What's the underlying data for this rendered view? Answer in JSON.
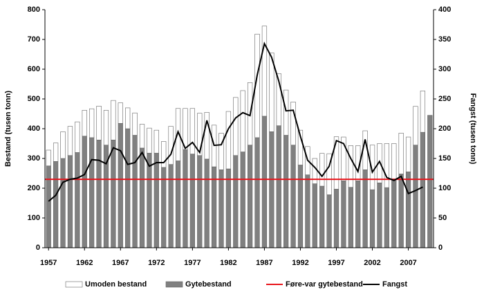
{
  "chart_data": {
    "type": "stacked-bar-line",
    "y_label": "Bestand (tusen tonn)",
    "y2_label": "Fangst (tusen tonn)",
    "categories": [
      "1957",
      null,
      null,
      null,
      null,
      "1962",
      null,
      null,
      null,
      null,
      "1967",
      null,
      null,
      null,
      null,
      "1972",
      null,
      null,
      null,
      null,
      "1977",
      null,
      null,
      null,
      null,
      "1982",
      null,
      null,
      null,
      null,
      "1987",
      null,
      null,
      null,
      null,
      "1992",
      null,
      null,
      null,
      null,
      "1997",
      null,
      null,
      null,
      null,
      "2002",
      null,
      null,
      null,
      null,
      "2007",
      null,
      null,
      null
    ],
    "series": [
      {
        "name": "Umoden bestand",
        "type": "bar",
        "color": "#ffffff",
        "values": [
          53,
          62,
          90,
          98,
          103,
          87,
          97,
          114,
          117,
          133,
          69,
          70,
          75,
          80,
          84,
          77,
          87,
          128,
          176,
          138,
          153,
          142,
          157,
          140,
          123,
          193,
          195,
          206,
          210,
          348,
          303,
          265,
          175,
          152,
          145,
          117,
          95,
          85,
          110,
          138,
          176,
          147,
          140,
          118,
          131,
          150,
          132,
          148,
          122,
          137,
          117,
          130,
          139,
          0
        ]
      },
      {
        "name": "Gytebestand",
        "type": "bar",
        "color": "#808080",
        "values": [
          275,
          290,
          300,
          310,
          320,
          375,
          370,
          362,
          345,
          362,
          418,
          400,
          378,
          335,
          318,
          318,
          270,
          280,
          292,
          330,
          315,
          310,
          298,
          272,
          262,
          265,
          310,
          322,
          345,
          370,
          442,
          390,
          410,
          378,
          345,
          278,
          245,
          215,
          207,
          178,
          197,
          225,
          203,
          225,
          262,
          195,
          218,
          202,
          228,
          248,
          255,
          345,
          388,
          445
        ]
      },
      {
        "name": "Føre-var gytebestand",
        "type": "hline",
        "color": "#e8141b",
        "value": 230
      },
      {
        "name": "Fangst",
        "type": "line",
        "color": "#000000",
        "axis": "y2",
        "values": [
          78,
          88,
          110,
          115,
          117,
          123,
          148,
          147,
          141,
          168,
          163,
          140,
          143,
          160,
          137,
          143,
          143,
          157,
          195,
          167,
          177,
          160,
          214,
          172,
          173,
          200,
          218,
          227,
          222,
          290,
          343,
          320,
          280,
          230,
          231,
          187,
          147,
          135,
          120,
          137,
          180,
          175,
          150,
          128,
          182,
          127,
          145,
          118,
          113,
          120,
          91,
          96,
          102,
          null
        ]
      }
    ],
    "ylim": [
      0,
      800
    ],
    "yticks": [
      0,
      100,
      200,
      300,
      400,
      500,
      600,
      700,
      800
    ],
    "y2lim": [
      0,
      400
    ],
    "y2ticks": [
      0,
      50,
      100,
      150,
      200,
      250,
      300,
      350,
      400
    ],
    "legend": "bottom"
  }
}
